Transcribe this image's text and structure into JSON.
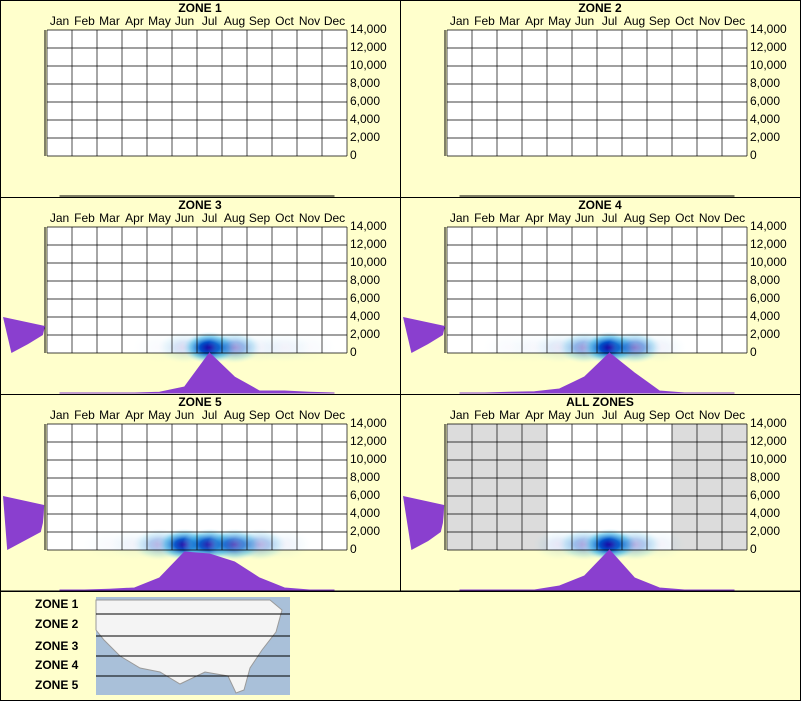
{
  "chart_data": [
    {
      "type": "heatmap",
      "title": "ZONE 1",
      "categories": [
        "Jan",
        "Feb",
        "Mar",
        "Apr",
        "May",
        "Jun",
        "Jul",
        "Aug",
        "Sep",
        "Oct",
        "Nov",
        "Dec"
      ],
      "ylim": [
        0,
        14000
      ],
      "yticks": [
        0,
        {
          "value": 2000,
          "label": "2,000"
        },
        {
          "value": 4000,
          "label": "4,000"
        },
        {
          "value": 6000,
          "label": "6,000"
        },
        {
          "value": 8000,
          "label": "8,000"
        },
        {
          "value": 10000,
          "label": "10,000"
        },
        {
          "value": 12000,
          "label": "12,000"
        },
        {
          "value": 14000,
          "label": "14,000"
        }
      ],
      "values": [
        0,
        0,
        0,
        0,
        0,
        0,
        0,
        0,
        0,
        0,
        0,
        0
      ],
      "elevations": [
        0,
        1000,
        2000,
        3000,
        4000
      ],
      "elevation_density": [
        0,
        0,
        0,
        0,
        0
      ],
      "color": "#8a3fcf"
    },
    {
      "type": "heatmap",
      "title": "ZONE 2",
      "categories": [
        "Jan",
        "Feb",
        "Mar",
        "Apr",
        "May",
        "Jun",
        "Jul",
        "Aug",
        "Sep",
        "Oct",
        "Nov",
        "Dec"
      ],
      "ylim": [
        0,
        14000
      ],
      "yticks": [
        0,
        {
          "value": 2000,
          "label": "2,000"
        },
        {
          "value": 4000,
          "label": "4,000"
        },
        {
          "value": 6000,
          "label": "6,000"
        },
        {
          "value": 8000,
          "label": "8,000"
        },
        {
          "value": 10000,
          "label": "10,000"
        },
        {
          "value": 12000,
          "label": "12,000"
        },
        {
          "value": 14000,
          "label": "14,000"
        }
      ],
      "values": [
        0,
        0,
        0,
        0,
        0,
        0,
        0,
        0,
        0,
        0,
        0,
        0
      ],
      "elevations": [
        0,
        1000,
        2000,
        3000,
        4000
      ],
      "elevation_density": [
        0,
        0,
        0,
        0,
        0
      ],
      "color": "#8a3fcf"
    },
    {
      "type": "heatmap",
      "title": "ZONE 3",
      "categories": [
        "Jan",
        "Feb",
        "Mar",
        "Apr",
        "May",
        "Jun",
        "Jul",
        "Aug",
        "Sep",
        "Oct",
        "Nov",
        "Dec"
      ],
      "ylim": [
        0,
        14000
      ],
      "yticks": [
        0,
        {
          "value": 2000,
          "label": "2,000"
        },
        {
          "value": 4000,
          "label": "4,000"
        },
        {
          "value": 6000,
          "label": "6,000"
        },
        {
          "value": 8000,
          "label": "8,000"
        },
        {
          "value": 10000,
          "label": "10,000"
        },
        {
          "value": 12000,
          "label": "12,000"
        },
        {
          "value": 14000,
          "label": "14,000"
        }
      ],
      "values": [
        0,
        0,
        0,
        0,
        0.02,
        0.15,
        1,
        0.4,
        0.05,
        0.05,
        0.02,
        0
      ],
      "elevations": [
        0,
        1000,
        2000,
        3000,
        4000
      ],
      "elevation_density": [
        0.2,
        0.6,
        0.95,
        1,
        0
      ],
      "color": "#8a3fcf"
    },
    {
      "type": "heatmap",
      "title": "ZONE 4",
      "categories": [
        "Jan",
        "Feb",
        "Mar",
        "Apr",
        "May",
        "Jun",
        "Jul",
        "Aug",
        "Sep",
        "Oct",
        "Nov",
        "Dec"
      ],
      "ylim": [
        0,
        14000
      ],
      "yticks": [
        0,
        {
          "value": 2000,
          "label": "2,000"
        },
        {
          "value": 4000,
          "label": "4,000"
        },
        {
          "value": 6000,
          "label": "6,000"
        },
        {
          "value": 8000,
          "label": "8,000"
        },
        {
          "value": 10000,
          "label": "10,000"
        },
        {
          "value": 12000,
          "label": "12,000"
        },
        {
          "value": 14000,
          "label": "14,000"
        }
      ],
      "values": [
        0,
        0,
        0.02,
        0.03,
        0.1,
        0.4,
        1,
        0.5,
        0.05,
        0,
        0,
        0
      ],
      "elevations": [
        0,
        1000,
        2000,
        3000,
        4000
      ],
      "elevation_density": [
        0.2,
        0.6,
        0.95,
        1,
        0
      ],
      "color": "#8a3fcf"
    },
    {
      "type": "heatmap",
      "title": "ZONE 5",
      "categories": [
        "Jan",
        "Feb",
        "Mar",
        "Apr",
        "May",
        "Jun",
        "Jul",
        "Aug",
        "Sep",
        "Oct",
        "Nov",
        "Dec"
      ],
      "ylim": [
        0,
        14000
      ],
      "yticks": [
        0,
        {
          "value": 2000,
          "label": "2,000"
        },
        {
          "value": 4000,
          "label": "4,000"
        },
        {
          "value": 6000,
          "label": "6,000"
        },
        {
          "value": 8000,
          "label": "8,000"
        },
        {
          "value": 10000,
          "label": "10,000"
        },
        {
          "value": 12000,
          "label": "12,000"
        },
        {
          "value": 14000,
          "label": "14,000"
        }
      ],
      "values": [
        0,
        0,
        0.02,
        0.05,
        0.3,
        0.95,
        0.9,
        0.7,
        0.3,
        0.05,
        0,
        0
      ],
      "elevations": [
        0,
        1000,
        2000,
        3000,
        4000,
        5000,
        6000
      ],
      "elevation_density": [
        0.1,
        0.5,
        0.9,
        0.95,
        0.97,
        0.98,
        0
      ],
      "color": "#8a3fcf"
    },
    {
      "type": "heatmap",
      "title": "ALL ZONES",
      "categories": [
        "Jan",
        "Feb",
        "Mar",
        "Apr",
        "May",
        "Jun",
        "Jul",
        "Aug",
        "Sep",
        "Oct",
        "Nov",
        "Dec"
      ],
      "ylim": [
        0,
        14000
      ],
      "yticks": [
        0,
        {
          "value": 2000,
          "label": "2,000"
        },
        {
          "value": 4000,
          "label": "4,000"
        },
        {
          "value": 6000,
          "label": "6,000"
        },
        {
          "value": 8000,
          "label": "8,000"
        },
        {
          "value": 10000,
          "label": "10,000"
        },
        {
          "value": 12000,
          "label": "12,000"
        },
        {
          "value": 14000,
          "label": "14,000"
        }
      ],
      "values": [
        0,
        0,
        0,
        0,
        0.1,
        0.35,
        1,
        0.3,
        0.05,
        0,
        0,
        0
      ],
      "elevations": [
        0,
        1000,
        2000,
        3000,
        4000,
        5000,
        6000
      ],
      "elevation_density": [
        0.2,
        0.6,
        0.9,
        0.95,
        0.97,
        0.98,
        0
      ],
      "color": "#8a3fcf"
    }
  ],
  "legend": {
    "zones": [
      "ZONE 1",
      "ZONE 2",
      "ZONE 3",
      "ZONE 4",
      "ZONE 5"
    ]
  }
}
